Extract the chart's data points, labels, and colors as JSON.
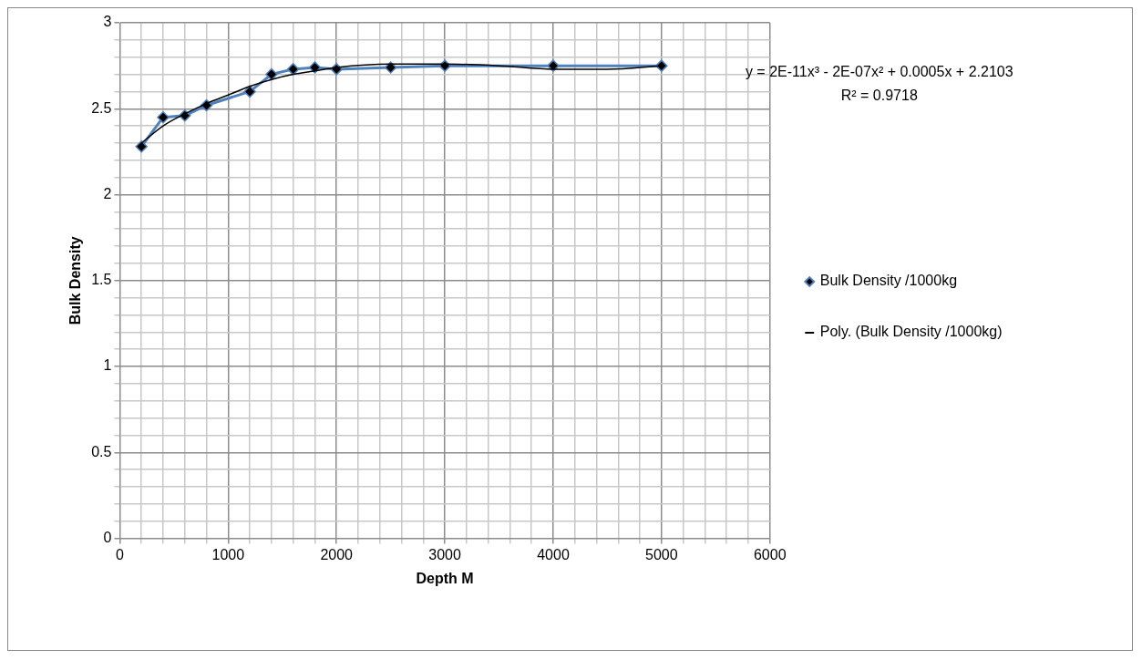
{
  "chart_data": {
    "type": "line",
    "xlabel": "Depth M",
    "ylabel": "Bulk Density",
    "xlim": [
      0,
      6000
    ],
    "xticks": [
      0,
      {
        "value": 200,
        "label": null
      },
      {
        "value": 400,
        "label": null
      },
      {
        "value": 600,
        "label": null
      },
      {
        "value": 800,
        "label": null
      },
      1000,
      {
        "value": 1200,
        "label": null
      },
      {
        "value": 1400,
        "label": null
      },
      {
        "value": 1600,
        "label": null
      },
      {
        "value": 1800,
        "label": null
      },
      2000,
      {
        "value": 2200,
        "label": null
      },
      {
        "value": 2400,
        "label": null
      },
      {
        "value": 2600,
        "label": null
      },
      {
        "value": 2800,
        "label": null
      },
      3000,
      {
        "value": 3200,
        "label": null
      },
      {
        "value": 3400,
        "label": null
      },
      {
        "value": 3600,
        "label": null
      },
      {
        "value": 3800,
        "label": null
      },
      4000,
      {
        "value": 4200,
        "label": null
      },
      {
        "value": 4400,
        "label": null
      },
      {
        "value": 4600,
        "label": null
      },
      {
        "value": 4800,
        "label": null
      },
      5000,
      {
        "value": 5200,
        "label": null
      },
      {
        "value": 5400,
        "label": null
      },
      {
        "value": 5600,
        "label": null
      },
      {
        "value": 5800,
        "label": null
      },
      6000
    ],
    "ylim": [
      0,
      3
    ],
    "yticks": [
      0,
      {
        "value": 0.1,
        "label": null
      },
      {
        "value": 0.2,
        "label": null
      },
      {
        "value": 0.3,
        "label": null
      },
      {
        "value": 0.4,
        "label": null
      },
      0.5,
      {
        "value": 0.6,
        "label": null
      },
      {
        "value": 0.7,
        "label": null
      },
      {
        "value": 0.8,
        "label": null
      },
      {
        "value": 0.9,
        "label": null
      },
      1,
      {
        "value": 1.1,
        "label": null
      },
      {
        "value": 1.2,
        "label": null
      },
      {
        "value": 1.3,
        "label": null
      },
      {
        "value": 1.4,
        "label": null
      },
      1.5,
      {
        "value": 1.6,
        "label": null
      },
      {
        "value": 1.7,
        "label": null
      },
      {
        "value": 1.8,
        "label": null
      },
      {
        "value": 1.9,
        "label": null
      },
      2,
      {
        "value": 2.1,
        "label": null
      },
      {
        "value": 2.2,
        "label": null
      },
      {
        "value": 2.3,
        "label": null
      },
      {
        "value": 2.4,
        "label": null
      },
      2.5,
      {
        "value": 2.6,
        "label": null
      },
      {
        "value": 2.7,
        "label": null
      },
      {
        "value": 2.8,
        "label": null
      },
      {
        "value": 2.9,
        "label": null
      },
      3
    ],
    "grid": true,
    "legend": "right",
    "marker": "diamond",
    "series": [
      {
        "name": "Bulk Density /1000kg",
        "color": "#4f81bd",
        "x": [
          200,
          400,
          600,
          800,
          1200,
          1400,
          1600,
          1800,
          2000,
          2500,
          3000,
          4000,
          5000
        ],
        "values": [
          2.28,
          2.45,
          2.46,
          2.52,
          2.6,
          2.7,
          2.73,
          2.74,
          2.73,
          2.74,
          2.75,
          2.75,
          2.75
        ]
      },
      {
        "name": "Poly. (Bulk Density /1000kg)",
        "type": "line",
        "marker": "none",
        "color": "#000000",
        "x": [
          200,
          400,
          600,
          800,
          1000,
          1200,
          1400,
          1600,
          1800,
          2000,
          2500,
          3000,
          3500,
          4000,
          4500,
          5000
        ],
        "values": [
          2.3,
          2.4,
          2.47,
          2.53,
          2.58,
          2.63,
          2.67,
          2.7,
          2.72,
          2.74,
          2.76,
          2.76,
          2.75,
          2.73,
          2.73,
          2.75
        ]
      }
    ],
    "annotations": [
      "y = 2E-11x³ - 2E-07x² + 0.0005x + 2.2103",
      "R² = 0.9718"
    ]
  }
}
